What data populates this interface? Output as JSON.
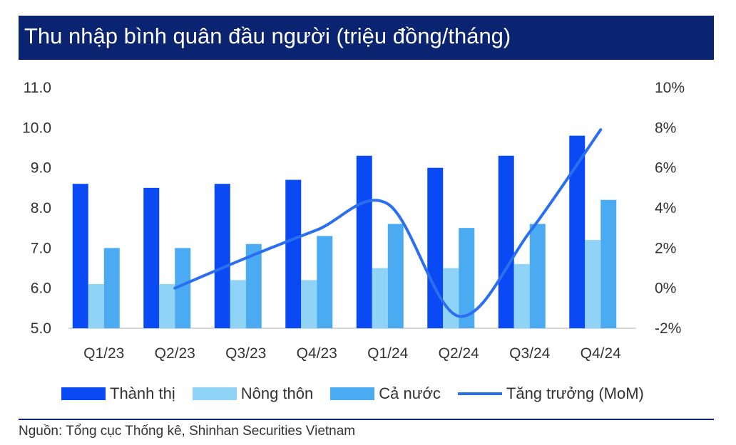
{
  "title": "Thu nhập bình quân đầu người (triệu đồng/tháng)",
  "source": "Nguồn:  Tổng cục Thống kê,   Shinhan Securities Vietnam",
  "colors": {
    "title_bg": "#0a2472",
    "thanh_thi": "#0a4af5",
    "nong_thon": "#8fd3f6",
    "ca_nuoc": "#4aaaf2",
    "tang_truong": "#2b6ff0"
  },
  "chart_data": {
    "type": "bar",
    "categories": [
      "Q1/23",
      "Q2/23",
      "Q3/23",
      "Q4/23",
      "Q1/24",
      "Q2/24",
      "Q3/24",
      "Q4/24"
    ],
    "series": [
      {
        "name": "Thành thị",
        "axis": "left",
        "type": "bar",
        "values": [
          8.6,
          8.5,
          8.6,
          8.7,
          9.3,
          9.0,
          9.3,
          9.8
        ]
      },
      {
        "name": "Nông thôn",
        "axis": "left",
        "type": "bar",
        "values": [
          6.1,
          6.1,
          6.2,
          6.2,
          6.5,
          6.5,
          6.6,
          7.2
        ]
      },
      {
        "name": "Cả nước",
        "axis": "left",
        "type": "bar",
        "values": [
          7.0,
          7.0,
          7.1,
          7.3,
          7.6,
          7.5,
          7.6,
          8.2
        ]
      },
      {
        "name": "Tăng trưởng (MoM)",
        "axis": "right",
        "type": "line",
        "values": [
          null,
          0.0,
          1.5,
          2.9,
          4.2,
          -1.4,
          2.8,
          7.9
        ]
      }
    ],
    "y_left": {
      "min": 5.0,
      "max": 11.0,
      "ticks": [
        "11.0",
        "10.0",
        "9.0",
        "8.0",
        "7.0",
        "6.0",
        "5.0"
      ]
    },
    "y_right": {
      "min": -2,
      "max": 10,
      "ticks": [
        "10%",
        "8%",
        "6%",
        "4%",
        "2%",
        "0%",
        "-2%"
      ]
    },
    "grid": false,
    "legend_position": "bottom"
  }
}
